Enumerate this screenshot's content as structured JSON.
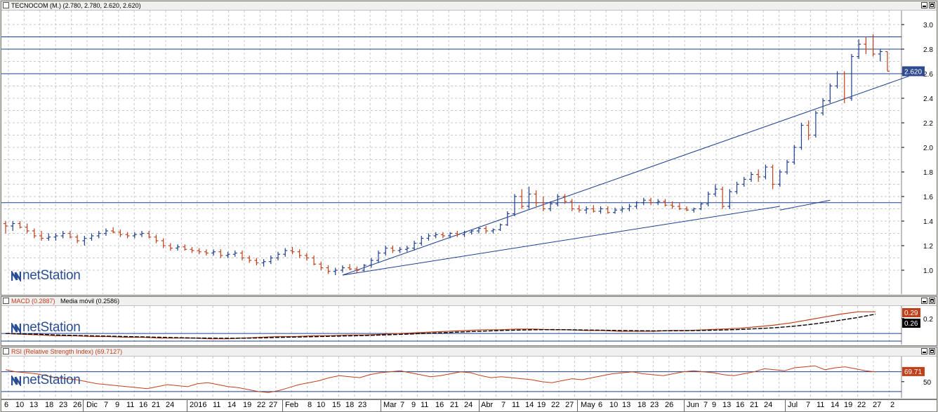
{
  "price_panel": {
    "title": "TECNOCOM (M.) (2.780, 2.780, 2.620, 2.620)",
    "last_price_badge": "2.620",
    "y_ticks": [
      "3.0",
      "2.8",
      "2.6",
      "2.4",
      "2.2",
      "2.0",
      "1.8",
      "1.6",
      "1.4",
      "1.2",
      "1.0"
    ],
    "logo_text": "netStation"
  },
  "macd_panel": {
    "title_macd": "MACD (0.2887)",
    "title_signal": "Media móvil (0.2586)",
    "badge_macd": "0.29",
    "badge_signal": "0.26",
    "y_tick": "0.2",
    "logo_text": "netStation"
  },
  "rsi_panel": {
    "title": "RSI (Relative Strength Index) (69.7127)",
    "badge": "69.71",
    "y_tick": "50",
    "logo_text": "netStation"
  },
  "x_axis": {
    "labels": [
      "6",
      "10",
      "13",
      "18",
      "23",
      "26",
      "Dic",
      "7",
      "9",
      "11",
      "16",
      "21",
      "24",
      "2016",
      "11",
      "14",
      "19",
      "22",
      "27",
      "Feb",
      "8",
      "10",
      "15",
      "18",
      "23",
      "Mar",
      "7",
      "9",
      "11",
      "16",
      "21",
      "24",
      "Abr",
      "7",
      "11",
      "14",
      "19",
      "22",
      "27",
      "May",
      "6",
      "10",
      "13",
      "18",
      "23",
      "26",
      "Jun",
      "7",
      "9",
      "13",
      "16",
      "21",
      "24",
      "Jul",
      "7",
      "11",
      "14",
      "19",
      "22",
      "27",
      "2"
    ]
  },
  "colors": {
    "up_bar": "#1e3f8f",
    "down_bar": "#c0401c",
    "macd_line": "#c0401c",
    "signal_line": "#000000",
    "rsi_line": "#c0401c",
    "support_line": "#1e3f8f",
    "badge_blue": "#2f4b8f",
    "badge_orange": "#c0401c"
  },
  "chart_data": {
    "type": "ohlc",
    "ylim": [
      0.84,
      3.08
    ],
    "horizontal_levels": [
      2.9,
      2.8,
      2.6,
      1.55
    ],
    "ohlc": [
      [
        1.38,
        1.4,
        1.3,
        1.36
      ],
      [
        1.36,
        1.4,
        1.32,
        1.38
      ],
      [
        1.38,
        1.4,
        1.34,
        1.35
      ],
      [
        1.35,
        1.38,
        1.3,
        1.32
      ],
      [
        1.32,
        1.34,
        1.26,
        1.28
      ],
      [
        1.28,
        1.32,
        1.24,
        1.26
      ],
      [
        1.26,
        1.3,
        1.24,
        1.27
      ],
      [
        1.27,
        1.3,
        1.24,
        1.28
      ],
      [
        1.28,
        1.32,
        1.26,
        1.3
      ],
      [
        1.3,
        1.32,
        1.26,
        1.27
      ],
      [
        1.27,
        1.29,
        1.22,
        1.24
      ],
      [
        1.24,
        1.28,
        1.2,
        1.26
      ],
      [
        1.26,
        1.3,
        1.24,
        1.28
      ],
      [
        1.28,
        1.32,
        1.26,
        1.3
      ],
      [
        1.3,
        1.34,
        1.28,
        1.32
      ],
      [
        1.32,
        1.35,
        1.3,
        1.31
      ],
      [
        1.31,
        1.33,
        1.27,
        1.29
      ],
      [
        1.29,
        1.31,
        1.26,
        1.28
      ],
      [
        1.28,
        1.31,
        1.26,
        1.29
      ],
      [
        1.29,
        1.32,
        1.27,
        1.3
      ],
      [
        1.3,
        1.32,
        1.26,
        1.27
      ],
      [
        1.27,
        1.29,
        1.22,
        1.24
      ],
      [
        1.24,
        1.26,
        1.18,
        1.2
      ],
      [
        1.2,
        1.22,
        1.16,
        1.18
      ],
      [
        1.18,
        1.21,
        1.16,
        1.19
      ],
      [
        1.19,
        1.21,
        1.16,
        1.17
      ],
      [
        1.17,
        1.19,
        1.14,
        1.16
      ],
      [
        1.16,
        1.18,
        1.13,
        1.15
      ],
      [
        1.15,
        1.17,
        1.12,
        1.14
      ],
      [
        1.14,
        1.17,
        1.12,
        1.15
      ],
      [
        1.15,
        1.17,
        1.1,
        1.12
      ],
      [
        1.12,
        1.15,
        1.1,
        1.13
      ],
      [
        1.13,
        1.16,
        1.11,
        1.14
      ],
      [
        1.14,
        1.16,
        1.08,
        1.1
      ],
      [
        1.1,
        1.12,
        1.06,
        1.08
      ],
      [
        1.08,
        1.1,
        1.04,
        1.06
      ],
      [
        1.06,
        1.09,
        1.03,
        1.07
      ],
      [
        1.07,
        1.12,
        1.05,
        1.1
      ],
      [
        1.1,
        1.15,
        1.08,
        1.13
      ],
      [
        1.13,
        1.18,
        1.11,
        1.16
      ],
      [
        1.16,
        1.19,
        1.13,
        1.15
      ],
      [
        1.15,
        1.17,
        1.1,
        1.12
      ],
      [
        1.12,
        1.14,
        1.08,
        1.1
      ],
      [
        1.1,
        1.12,
        1.04,
        1.05
      ],
      [
        1.05,
        1.07,
        1.0,
        1.02
      ],
      [
        1.02,
        1.04,
        0.97,
        0.99
      ],
      [
        0.99,
        1.02,
        0.96,
        1.0
      ],
      [
        1.0,
        1.04,
        0.98,
        1.02
      ],
      [
        1.02,
        1.05,
        1.0,
        1.01
      ],
      [
        1.01,
        1.03,
        0.98,
        1.0
      ],
      [
        1.0,
        1.05,
        0.99,
        1.04
      ],
      [
        1.04,
        1.1,
        1.02,
        1.08
      ],
      [
        1.08,
        1.16,
        1.06,
        1.14
      ],
      [
        1.14,
        1.2,
        1.12,
        1.18
      ],
      [
        1.18,
        1.2,
        1.14,
        1.16
      ],
      [
        1.16,
        1.19,
        1.14,
        1.17
      ],
      [
        1.17,
        1.2,
        1.15,
        1.18
      ],
      [
        1.18,
        1.24,
        1.16,
        1.22
      ],
      [
        1.22,
        1.28,
        1.2,
        1.26
      ],
      [
        1.26,
        1.3,
        1.24,
        1.28
      ],
      [
        1.28,
        1.31,
        1.26,
        1.29
      ],
      [
        1.29,
        1.31,
        1.26,
        1.28
      ],
      [
        1.28,
        1.31,
        1.26,
        1.3
      ],
      [
        1.3,
        1.32,
        1.27,
        1.29
      ],
      [
        1.29,
        1.32,
        1.27,
        1.31
      ],
      [
        1.31,
        1.33,
        1.29,
        1.32
      ],
      [
        1.32,
        1.35,
        1.3,
        1.34
      ],
      [
        1.34,
        1.36,
        1.3,
        1.32
      ],
      [
        1.32,
        1.34,
        1.3,
        1.33
      ],
      [
        1.33,
        1.38,
        1.32,
        1.37
      ],
      [
        1.37,
        1.48,
        1.36,
        1.46
      ],
      [
        1.46,
        1.62,
        1.44,
        1.6
      ],
      [
        1.6,
        1.66,
        1.5,
        1.52
      ],
      [
        1.52,
        1.68,
        1.5,
        1.62
      ],
      [
        1.62,
        1.65,
        1.52,
        1.55
      ],
      [
        1.55,
        1.6,
        1.48,
        1.5
      ],
      [
        1.5,
        1.56,
        1.48,
        1.54
      ],
      [
        1.54,
        1.62,
        1.52,
        1.6
      ],
      [
        1.6,
        1.62,
        1.54,
        1.56
      ],
      [
        1.56,
        1.58,
        1.48,
        1.5
      ],
      [
        1.5,
        1.53,
        1.47,
        1.49
      ],
      [
        1.49,
        1.52,
        1.46,
        1.5
      ],
      [
        1.5,
        1.53,
        1.47,
        1.48
      ],
      [
        1.48,
        1.52,
        1.46,
        1.5
      ],
      [
        1.5,
        1.52,
        1.46,
        1.47
      ],
      [
        1.47,
        1.51,
        1.46,
        1.49
      ],
      [
        1.49,
        1.52,
        1.47,
        1.5
      ],
      [
        1.5,
        1.54,
        1.48,
        1.52
      ],
      [
        1.52,
        1.56,
        1.5,
        1.55
      ],
      [
        1.55,
        1.59,
        1.53,
        1.57
      ],
      [
        1.57,
        1.59,
        1.53,
        1.55
      ],
      [
        1.55,
        1.58,
        1.53,
        1.56
      ],
      [
        1.56,
        1.58,
        1.52,
        1.53
      ],
      [
        1.53,
        1.56,
        1.5,
        1.52
      ],
      [
        1.52,
        1.55,
        1.49,
        1.5
      ],
      [
        1.5,
        1.52,
        1.48,
        1.49
      ],
      [
        1.49,
        1.51,
        1.47,
        1.5
      ],
      [
        1.5,
        1.55,
        1.49,
        1.54
      ],
      [
        1.54,
        1.64,
        1.52,
        1.62
      ],
      [
        1.62,
        1.7,
        1.6,
        1.66
      ],
      [
        1.66,
        1.68,
        1.5,
        1.52
      ],
      [
        1.52,
        1.66,
        1.5,
        1.64
      ],
      [
        1.64,
        1.72,
        1.62,
        1.7
      ],
      [
        1.7,
        1.76,
        1.68,
        1.74
      ],
      [
        1.74,
        1.8,
        1.72,
        1.78
      ],
      [
        1.78,
        1.82,
        1.72,
        1.76
      ],
      [
        1.76,
        1.86,
        1.74,
        1.84
      ],
      [
        1.84,
        1.86,
        1.66,
        1.7
      ],
      [
        1.7,
        1.82,
        1.68,
        1.8
      ],
      [
        1.8,
        1.9,
        1.78,
        1.88
      ],
      [
        1.88,
        2.02,
        1.86,
        2.0
      ],
      [
        2.0,
        2.2,
        1.98,
        2.18
      ],
      [
        2.18,
        2.22,
        2.06,
        2.1
      ],
      [
        2.1,
        2.3,
        2.08,
        2.28
      ],
      [
        2.28,
        2.4,
        2.26,
        2.38
      ],
      [
        2.38,
        2.52,
        2.36,
        2.5
      ],
      [
        2.5,
        2.62,
        2.48,
        2.6
      ],
      [
        2.6,
        2.62,
        2.36,
        2.4
      ],
      [
        2.4,
        2.76,
        2.38,
        2.74
      ],
      [
        2.74,
        2.88,
        2.72,
        2.84
      ],
      [
        2.84,
        2.9,
        2.76,
        2.8
      ],
      [
        2.8,
        2.92,
        2.74,
        2.76
      ],
      [
        2.76,
        2.8,
        2.7,
        2.78
      ],
      [
        2.78,
        2.78,
        2.62,
        2.62
      ]
    ],
    "trendlines": [
      {
        "from": [
          47,
          0.96
        ],
        "to": [
          126,
          2.58
        ]
      },
      {
        "from": [
          47,
          0.96
        ],
        "to": [
          108,
          1.52
        ]
      },
      {
        "from": [
          108,
          1.49
        ],
        "to": [
          115,
          1.57
        ]
      }
    ],
    "macd": {
      "ylim": [
        -0.12,
        0.32
      ],
      "macd": [
        0.0,
        -0.01,
        -0.02,
        -0.03,
        -0.03,
        -0.04,
        -0.04,
        -0.05,
        -0.05,
        -0.06,
        -0.06,
        -0.06,
        -0.07,
        -0.07,
        -0.06,
        -0.05,
        -0.04,
        -0.04,
        -0.03,
        -0.03,
        -0.02,
        -0.02,
        -0.01,
        0.0,
        0.01,
        0.02,
        0.03,
        0.04,
        0.05,
        0.05,
        0.06,
        0.06,
        0.05,
        0.05,
        0.04,
        0.04,
        0.03,
        0.03,
        0.03,
        0.04,
        0.04,
        0.05,
        0.06,
        0.07,
        0.09,
        0.11,
        0.14,
        0.18,
        0.22,
        0.26,
        0.29,
        0.29
      ],
      "signal": [
        0.0,
        -0.005,
        -0.01,
        -0.02,
        -0.025,
        -0.03,
        -0.035,
        -0.04,
        -0.045,
        -0.05,
        -0.055,
        -0.06,
        -0.062,
        -0.064,
        -0.062,
        -0.058,
        -0.052,
        -0.047,
        -0.042,
        -0.037,
        -0.032,
        -0.027,
        -0.02,
        -0.012,
        -0.004,
        0.005,
        0.014,
        0.023,
        0.032,
        0.04,
        0.046,
        0.05,
        0.052,
        0.05,
        0.047,
        0.044,
        0.04,
        0.037,
        0.035,
        0.036,
        0.038,
        0.042,
        0.047,
        0.054,
        0.064,
        0.076,
        0.093,
        0.116,
        0.146,
        0.18,
        0.215,
        0.2586
      ]
    },
    "rsi": {
      "ylim": [
        20,
        95
      ],
      "overbought": 70,
      "oversold": 30,
      "values": [
        74,
        70,
        68,
        66,
        62,
        58,
        56,
        54,
        50,
        46,
        44,
        42,
        40,
        38,
        36,
        40,
        44,
        42,
        40,
        46,
        48,
        44,
        40,
        38,
        34,
        30,
        28,
        32,
        38,
        44,
        48,
        52,
        58,
        62,
        60,
        58,
        64,
        68,
        70,
        72,
        68,
        64,
        60,
        62,
        66,
        70,
        68,
        62,
        58,
        60,
        58,
        56,
        54,
        50,
        48,
        52,
        56,
        54,
        58,
        62,
        66,
        68,
        70,
        66,
        64,
        62,
        66,
        70,
        72,
        70,
        68,
        64,
        62,
        66,
        70,
        76,
        74,
        72,
        78,
        80,
        82,
        74,
        78,
        80,
        76,
        72,
        69.71
      ]
    }
  }
}
